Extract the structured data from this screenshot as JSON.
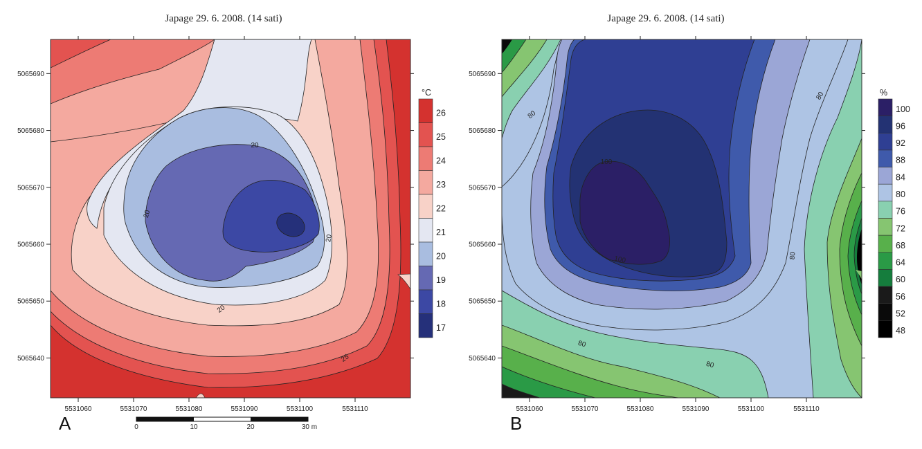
{
  "chart_data": [
    {
      "type": "heatmap",
      "panel_label": "A",
      "title": "Japage 29. 6. 2008. (14 sati)",
      "unit": "°C",
      "x_ticks": [
        "5531060",
        "5531070",
        "5531080",
        "5531090",
        "5531100",
        "5531110"
      ],
      "y_ticks": [
        "5065690",
        "5065680",
        "5065670",
        "5065660",
        "5065650",
        "5065640"
      ],
      "xlim": [
        5531055,
        5531120
      ],
      "ylim": [
        5065633,
        5065696
      ],
      "levels": [
        "26",
        "25",
        "24",
        "23",
        "22",
        "21",
        "20",
        "19",
        "18",
        "17"
      ],
      "level_colors": [
        "#d4322f",
        "#e35350",
        "#ed7b74",
        "#f4a99f",
        "#f8d2c8",
        "#e4e7f2",
        "#a9bde0",
        "#6569b3",
        "#3c48a4",
        "#25307a"
      ],
      "contour_labels": [
        "20",
        "20",
        "20",
        "20",
        "25"
      ],
      "field_points": [
        {
          "x": 5531099,
          "y": 5065663,
          "value": 17.3
        },
        {
          "x": 5531085,
          "y": 5065657,
          "value": 20.8
        }
      ]
    },
    {
      "type": "heatmap",
      "panel_label": "B",
      "title": "Japage 29. 6. 2008. (14 sati)",
      "unit": "%",
      "x_ticks": [
        "5531060",
        "5531070",
        "5531080",
        "5531090",
        "5531100",
        "5531110"
      ],
      "y_ticks": [
        "5065690",
        "5065680",
        "5065670",
        "5065660",
        "5065650",
        "5065640"
      ],
      "xlim": [
        5531055,
        5531120
      ],
      "ylim": [
        5065633,
        5065696
      ],
      "levels": [
        "100",
        "96",
        "92",
        "88",
        "84",
        "80",
        "76",
        "72",
        "68",
        "64",
        "60",
        "56",
        "52",
        "48"
      ],
      "level_colors": [
        "#2b1f66",
        "#233273",
        "#2f3f93",
        "#3f5aab",
        "#9ba6d6",
        "#aec4e4",
        "#89d0b0",
        "#86c571",
        "#58b04b",
        "#2a9a46",
        "#157d3d",
        "#1a1a1a",
        "#0a0a0a",
        "#000000"
      ],
      "contour_labels": [
        "80",
        "80",
        "80",
        "80",
        "80",
        "100",
        "100"
      ],
      "field_points": [
        {
          "x": 5531080,
          "y": 5065665,
          "value": 101
        },
        {
          "x": 5531120,
          "y": 5065658,
          "value": 60
        }
      ]
    }
  ],
  "scale_bar": {
    "labels": [
      "0",
      "10",
      "20",
      "30 m"
    ]
  }
}
